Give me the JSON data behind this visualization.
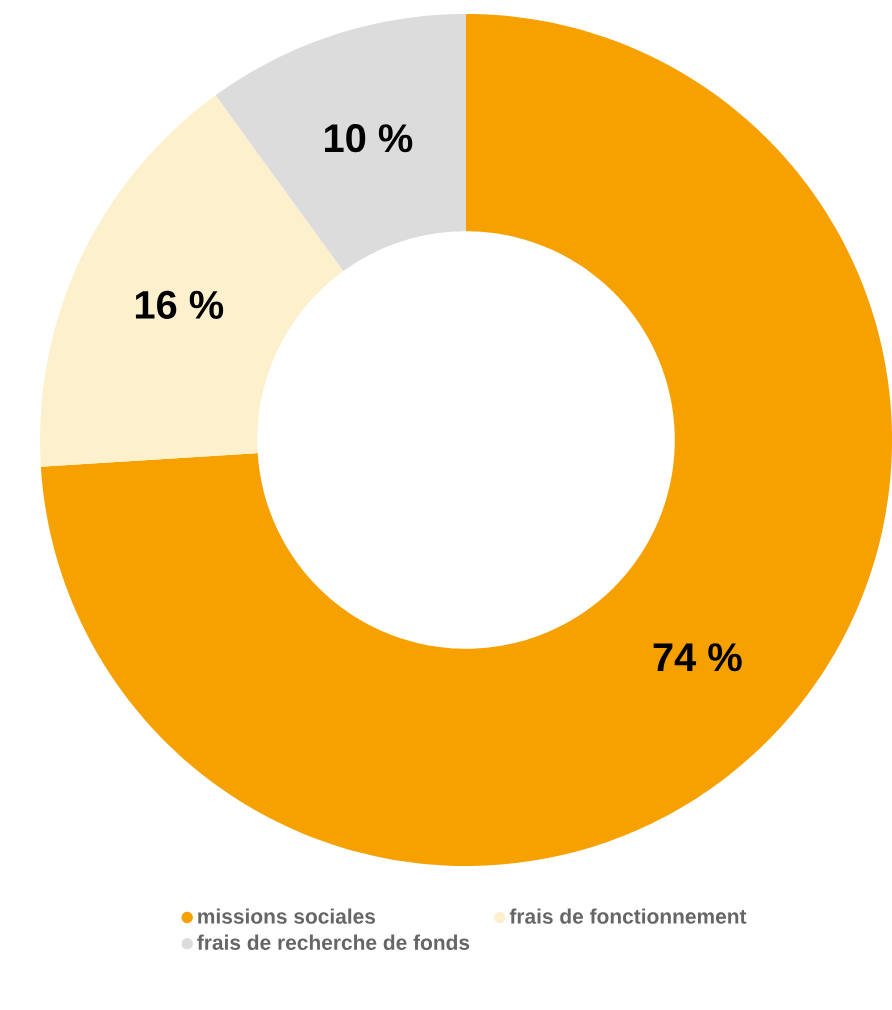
{
  "chart_data": {
    "type": "donut",
    "categories": [
      "missions sociales",
      "frais de fonctionnement",
      "frais de recherche de fonds"
    ],
    "values": [
      74,
      16,
      10
    ],
    "colors": [
      "#f7a100",
      "#fdf0cc",
      "#dcdcdc"
    ],
    "value_labels": [
      "74 %",
      "16 %",
      "10 %"
    ],
    "legend": "bottom"
  }
}
